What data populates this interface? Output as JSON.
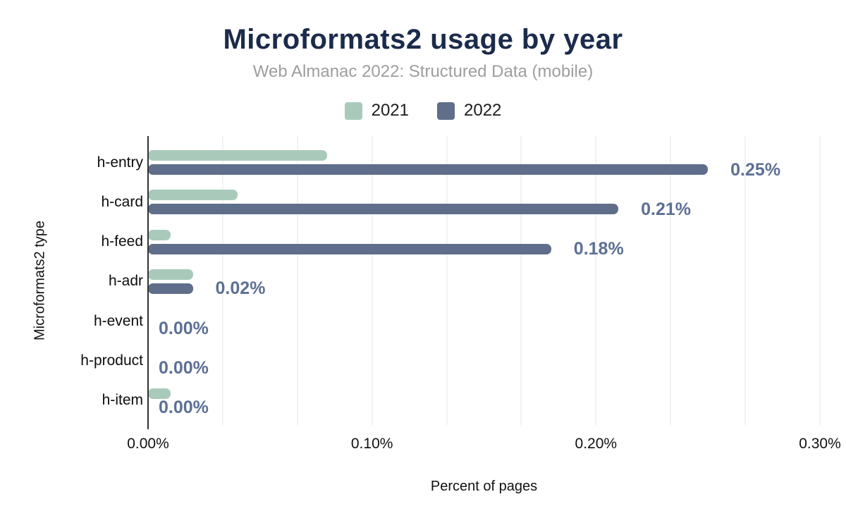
{
  "accent_colors": {
    "title": "#1b2b4b",
    "subtitle": "#9e9e9e",
    "value_label": "#5c7094",
    "gridline": "#f2f2f2",
    "axis_line": "#323232"
  },
  "chart_data": {
    "type": "bar",
    "orientation": "horizontal",
    "title": "Microformats2 usage by year",
    "subtitle": "Web Almanac 2022: Structured Data (mobile)",
    "categories": [
      "h-entry",
      "h-card",
      "h-feed",
      "h-adr",
      "h-event",
      "h-product",
      "h-item"
    ],
    "series": [
      {
        "name": "2021",
        "color": "#a9cabb",
        "values": [
          0.08,
          0.04,
          0.01,
          0.02,
          0.0,
          0.0,
          0.01
        ]
      },
      {
        "name": "2022",
        "color": "#5f6e8a",
        "values": [
          0.25,
          0.21,
          0.18,
          0.02,
          0.0,
          0.0,
          0.0
        ]
      }
    ],
    "bar_labels": {
      "series": "2022",
      "values": [
        "0.25%",
        "0.21%",
        "0.18%",
        "0.02%",
        "0.00%",
        "0.00%",
        "0.00%"
      ]
    },
    "xlabel": "Percent of pages",
    "ylabel": "Microformats2 type",
    "xlim": [
      0,
      0.3
    ],
    "x_ticks": [
      "0.00%",
      "0.10%",
      "0.20%",
      "0.30%"
    ],
    "legend_position": "top",
    "grid": "vertical, light minor gridlines every 1/9 of axis range"
  }
}
